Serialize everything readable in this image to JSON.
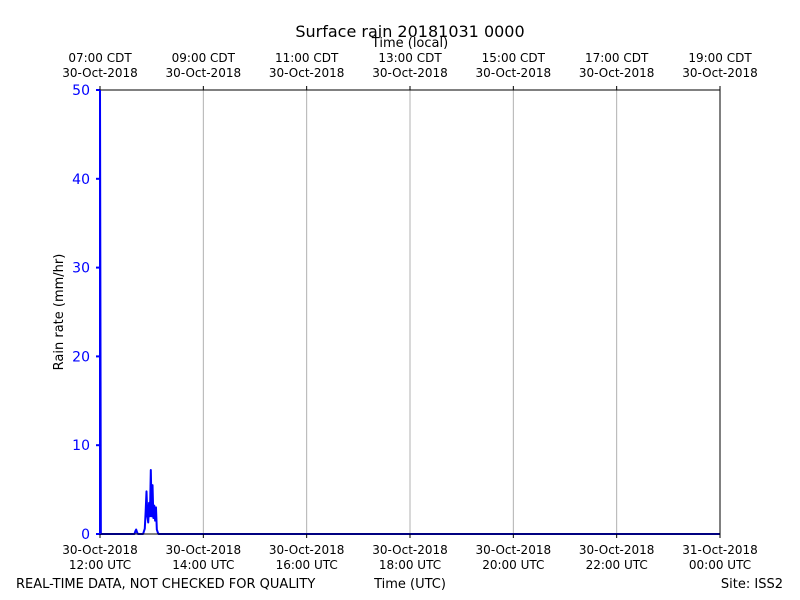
{
  "chart_data": {
    "type": "line",
    "title": "Surface rain 20181031 0000",
    "xlabel": "Time (UTC)",
    "x2label": "Time (local)",
    "ylabel": "Rain rate (mm/hr)",
    "xlim": [
      "2018-10-30T12:00",
      "2018-10-31T00:00"
    ],
    "ylim": [
      0,
      50
    ],
    "grid": true,
    "series_color": "#0000ff",
    "yticks": [
      0,
      10,
      20,
      30,
      40,
      50
    ],
    "xticks": [
      {
        "time": "2018-10-30T12:00",
        "line1": "30-Oct-2018",
        "line2": "12:00 UTC"
      },
      {
        "time": "2018-10-30T14:00",
        "line1": "30-Oct-2018",
        "line2": "14:00 UTC"
      },
      {
        "time": "2018-10-30T16:00",
        "line1": "30-Oct-2018",
        "line2": "16:00 UTC"
      },
      {
        "time": "2018-10-30T18:00",
        "line1": "30-Oct-2018",
        "line2": "18:00 UTC"
      },
      {
        "time": "2018-10-30T20:00",
        "line1": "30-Oct-2018",
        "line2": "20:00 UTC"
      },
      {
        "time": "2018-10-30T22:00",
        "line1": "30-Oct-2018",
        "line2": "22:00 UTC"
      },
      {
        "time": "2018-10-31T00:00",
        "line1": "31-Oct-2018",
        "line2": "00:00 UTC"
      }
    ],
    "x2ticks": [
      {
        "time": "2018-10-30T12:00",
        "line1": "07:00 CDT",
        "line2": "30-Oct-2018"
      },
      {
        "time": "2018-10-30T14:00",
        "line1": "09:00 CDT",
        "line2": "30-Oct-2018"
      },
      {
        "time": "2018-10-30T16:00",
        "line1": "11:00 CDT",
        "line2": "30-Oct-2018"
      },
      {
        "time": "2018-10-30T18:00",
        "line1": "13:00 CDT",
        "line2": "30-Oct-2018"
      },
      {
        "time": "2018-10-30T20:00",
        "line1": "15:00 CDT",
        "line2": "30-Oct-2018"
      },
      {
        "time": "2018-10-30T22:00",
        "line1": "17:00 CDT",
        "line2": "30-Oct-2018"
      },
      {
        "time": "2018-10-31T00:00",
        "line1": "19:00 CDT",
        "line2": "30-Oct-2018"
      }
    ],
    "series": [
      {
        "x": [
          "2018-10-30T12:00",
          "2018-10-30T12:01",
          "2018-10-30T12:03",
          "2018-10-30T12:40",
          "2018-10-30T12:41",
          "2018-10-30T12:42",
          "2018-10-30T12:43",
          "2018-10-30T12:44",
          "2018-10-30T12:50",
          "2018-10-30T12:52",
          "2018-10-30T12:53",
          "2018-10-30T12:54",
          "2018-10-30T12:55",
          "2018-10-30T12:56",
          "2018-10-30T12:57",
          "2018-10-30T12:58",
          "2018-10-30T12:59",
          "2018-10-30T13:00",
          "2018-10-30T13:01",
          "2018-10-30T13:02",
          "2018-10-30T13:03",
          "2018-10-30T13:04",
          "2018-10-30T13:05",
          "2018-10-30T13:06",
          "2018-10-30T13:07",
          "2018-10-30T13:08",
          "2018-10-30T13:09",
          "2018-10-30T13:10",
          "2018-10-30T13:11",
          "2018-10-30T13:12",
          "2018-10-30T13:13",
          "2018-10-30T13:14",
          "2018-10-30T13:16",
          "2018-10-31T00:00"
        ],
        "y": [
          50,
          0,
          0,
          0,
          0.3,
          0.5,
          0.2,
          0,
          0,
          0.6,
          2.5,
          4.8,
          2.0,
          1.3,
          3.5,
          2.0,
          7.2,
          2.0,
          5.5,
          1.8,
          3.2,
          1.5,
          3.0,
          0.5,
          0.2,
          0,
          0,
          0,
          0,
          0,
          0,
          0,
          0,
          0
        ]
      }
    ]
  },
  "footer": {
    "left": "REAL-TIME DATA, NOT CHECKED FOR QUALITY",
    "right": "Site: ISS2"
  }
}
